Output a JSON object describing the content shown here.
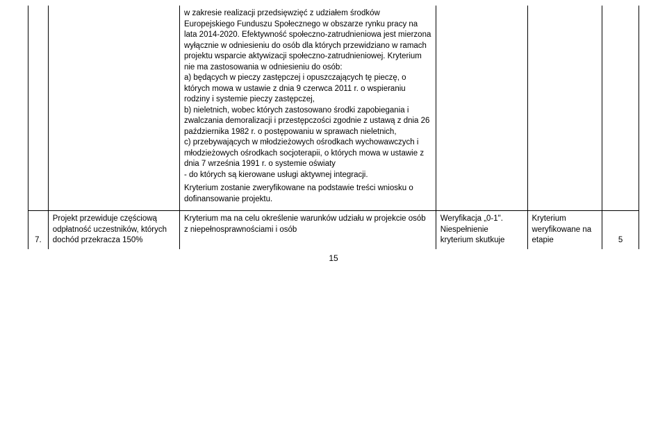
{
  "row1": {
    "body": "w zakresie realizacji przedsięwzięć z udziałem środków Europejskiego Funduszu Społecznego w obszarze rynku pracy na lata 2014-2020. Efektywność społeczno-zatrudnieniowa jest mierzona wyłącznie w odniesieniu do osób dla których przewidziano w ramach projektu wsparcie aktywizacji społeczno-zatrudnieniowej. Kryterium nie ma zastosowania w odniesieniu do osób:\na) będących w pieczy zastępczej i opuszczających tę pieczę, o których mowa w ustawie z dnia 9 czerwca 2011 r. o wspieraniu rodziny i systemie pieczy zastępczej,\nb) nieletnich, wobec których zastosowano środki zapobiegania i zwalczania demoralizacji i przestępczości zgodnie z ustawą z dnia 26 października 1982 r. o postępowaniu w sprawach nieletnich,\nc) przebywających w młodzieżowych ośrodkach wychowawczych i młodzieżowych ośrodkach socjoterapii, o których mowa w ustawie z dnia 7 września 1991 r. o systemie oświaty\n- do których są kierowane usługi aktywnej integracji.",
    "body2": "Kryterium zostanie zweryfikowane na podstawie treści wniosku o dofinansowanie projektu."
  },
  "row2": {
    "num": "7.",
    "colA": "Projekt przewiduje częściową odpłatność uczestników, których dochód przekracza 150%",
    "colB": "Kryterium ma na celu określenie warunków udziału w projekcie osób z niepełnosprawnościami i osób",
    "colC": "Weryfikacja „0-1\". Niespełnienie kryterium skutkuje",
    "colD": "Kryterium weryfikowane na etapie",
    "colE": "5"
  },
  "pageNumber": "15"
}
